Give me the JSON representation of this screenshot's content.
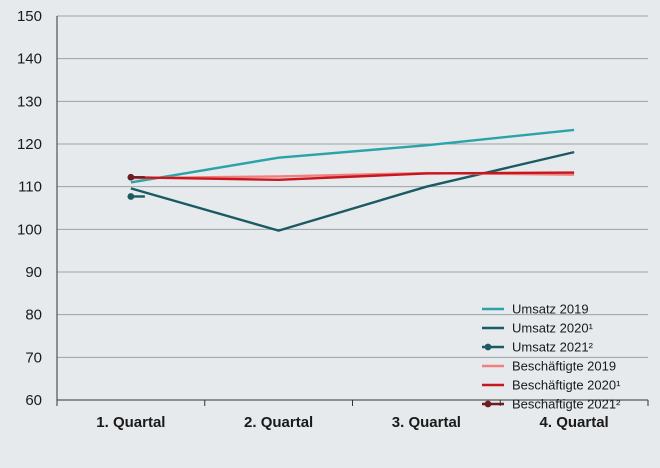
{
  "chart_data": {
    "type": "line",
    "categories": [
      "1. Quartal",
      "2. Quartal",
      "3. Quartal",
      "4. Quartal"
    ],
    "ylim": [
      60,
      150
    ],
    "yticks": [
      60,
      70,
      80,
      90,
      100,
      110,
      120,
      130,
      140,
      150
    ],
    "grid": true,
    "legend_position": "bottom-right",
    "series": [
      {
        "name": "Umsatz 2019",
        "color": "#2aa3a9",
        "values": [
          111.0,
          116.8,
          119.7,
          123.3
        ],
        "marker": false
      },
      {
        "name": "Umsatz 2020¹",
        "color": "#1c5a63",
        "values": [
          109.6,
          99.7,
          110.0,
          118.1
        ],
        "marker": false
      },
      {
        "name": "Umsatz 2021²",
        "color": "#1c5a63",
        "values": [
          107.7,
          null,
          null,
          null
        ],
        "marker": true
      },
      {
        "name": "Beschäftigte 2019",
        "color": "#f08080",
        "values": [
          112.0,
          112.4,
          113.2,
          112.8
        ],
        "marker": false
      },
      {
        "name": "Beschäftigte 2020¹",
        "color": "#c8161d",
        "values": [
          112.2,
          111.6,
          113.1,
          113.3
        ],
        "marker": false
      },
      {
        "name": "Beschäftigte 2021²",
        "color": "#6b1f24",
        "values": [
          112.2,
          null,
          null,
          null
        ],
        "marker": true
      }
    ]
  }
}
